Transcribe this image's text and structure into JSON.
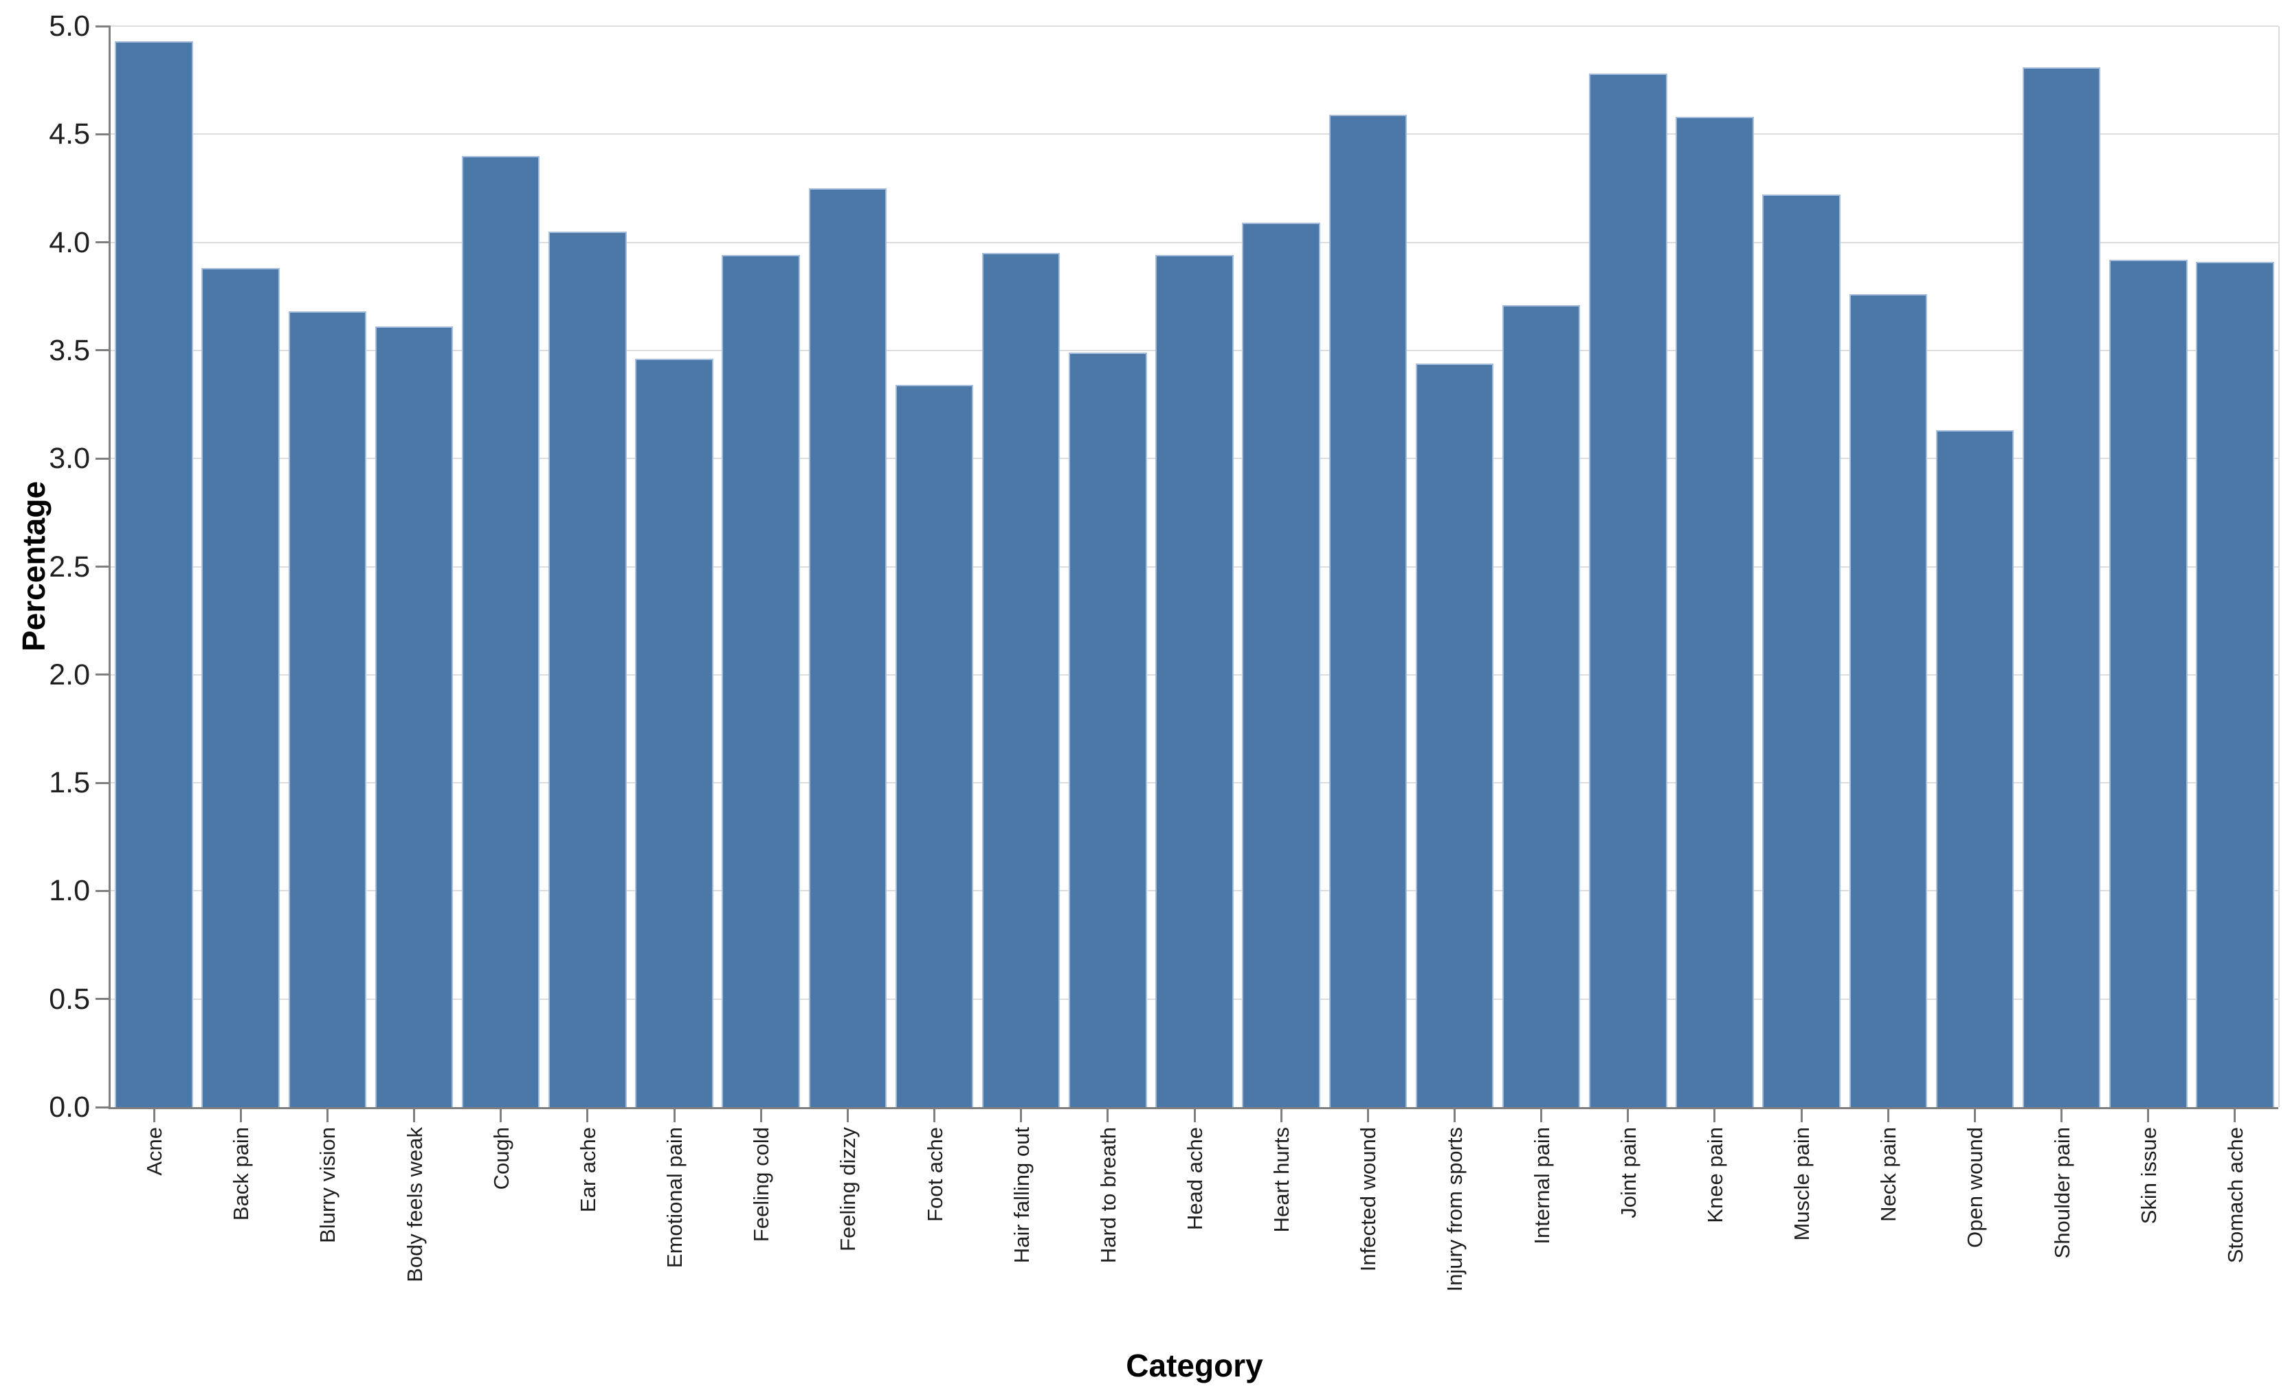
{
  "chart_data": {
    "type": "bar",
    "xlabel": "Category",
    "ylabel": "Percentage",
    "categories": [
      "Acne",
      "Back pain",
      "Blurry vision",
      "Body feels weak",
      "Cough",
      "Ear ache",
      "Emotional pain",
      "Feeling cold",
      "Feeling dizzy",
      "Foot ache",
      "Hair falling out",
      "Hard to breath",
      "Head ache",
      "Heart hurts",
      "Infected wound",
      "Injury from sports",
      "Internal pain",
      "Joint pain",
      "Knee pain",
      "Muscle pain",
      "Neck pain",
      "Open wound",
      "Shoulder pain",
      "Skin issue",
      "Stomach ache"
    ],
    "values": [
      4.93,
      3.88,
      3.68,
      3.61,
      4.4,
      4.05,
      3.46,
      3.94,
      4.25,
      3.34,
      3.95,
      3.49,
      3.94,
      4.09,
      4.59,
      3.44,
      3.71,
      4.78,
      4.58,
      4.22,
      3.76,
      3.13,
      4.81,
      3.92,
      3.91
    ],
    "ylim": [
      0,
      5
    ],
    "ytick_step": 0.5,
    "yticks": [
      "0.0",
      "0.5",
      "1.0",
      "1.5",
      "2.0",
      "2.5",
      "3.0",
      "3.5",
      "4.0",
      "4.5",
      "5.0"
    ],
    "grid": true,
    "legend_position": "none",
    "x_label_angle": -90,
    "colors": {
      "bar": "#4c78a8",
      "bar_edge": "#a5bedd",
      "grid": "#dddddd",
      "axis": "#7f7f7f",
      "view_border": "#dddddd",
      "tick_label": "#1f1f1f",
      "axis_title": "#000000"
    }
  }
}
